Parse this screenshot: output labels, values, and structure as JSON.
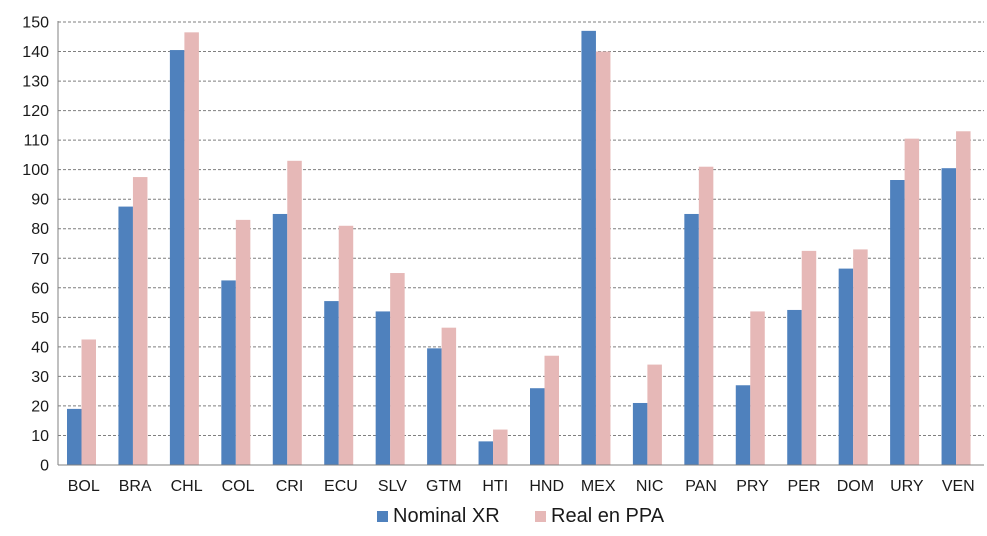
{
  "chart_data": {
    "type": "bar",
    "categories": [
      "BOL",
      "BRA",
      "CHL",
      "COL",
      "CRI",
      "ECU",
      "SLV",
      "GTM",
      "HTI",
      "HND",
      "MEX",
      "NIC",
      "PAN",
      "PRY",
      "PER",
      "DOM",
      "URY",
      "VEN"
    ],
    "series": [
      {
        "name": "Nominal XR",
        "color": "#4f81bd",
        "values": [
          19,
          87.5,
          140.5,
          62.5,
          85,
          55.5,
          52,
          39.5,
          8,
          26,
          147,
          21,
          85,
          27,
          52.5,
          66.5,
          96.5,
          100.5
        ]
      },
      {
        "name": "Real en PPA",
        "color": "#e6b8b7",
        "values": [
          42.5,
          97.5,
          146.5,
          83,
          103,
          81,
          65,
          46.5,
          12,
          37,
          140,
          34,
          101,
          52,
          72.5,
          73,
          110.5,
          113
        ]
      }
    ],
    "title": "",
    "xlabel": "",
    "ylabel": "",
    "ylim": [
      0,
      150
    ],
    "yticks": [
      "0",
      "10",
      "20",
      "30",
      "40",
      "50",
      "60",
      "70",
      "80",
      "90",
      "100",
      "110",
      "120",
      "130",
      "140",
      "150"
    ],
    "grid": true,
    "grid_style": "dashed-horizontal",
    "grid_color": "#7f7f7f",
    "axis_color": "#808080",
    "legend_position": "bottom-center"
  }
}
